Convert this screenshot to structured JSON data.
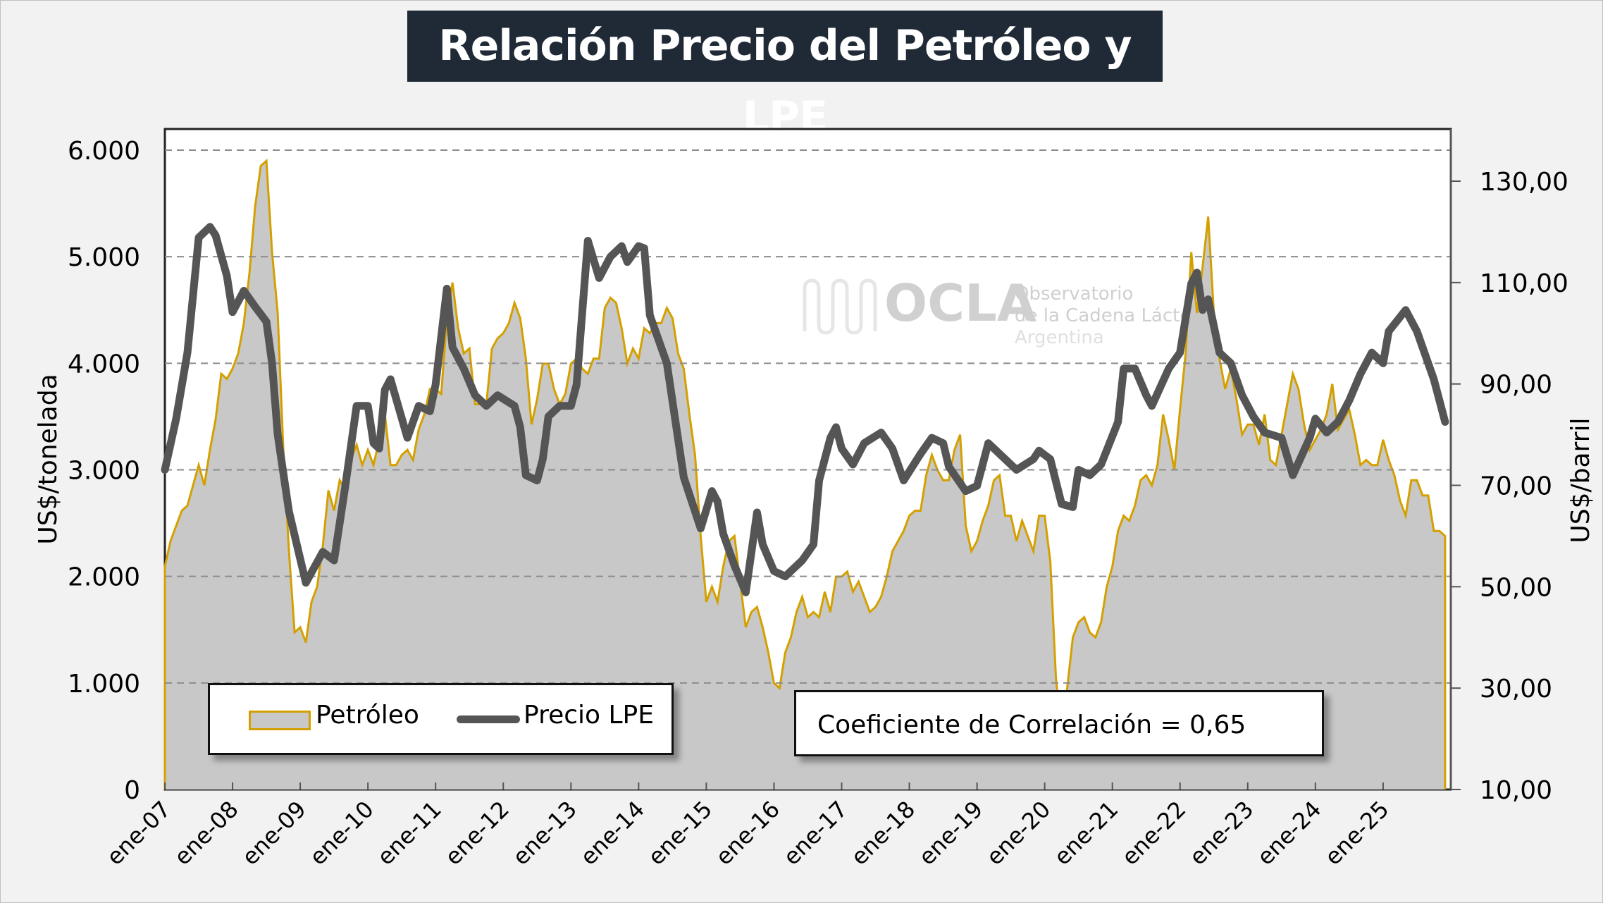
{
  "title": "Relación Precio del Petróleo y LPE",
  "watermark": {
    "logo": "OCLA",
    "line1": "Observatorio",
    "line2": "de la Cadena Láctea",
    "line3": "Argentina"
  },
  "legend": {
    "oil": "Petróleo",
    "lpe": "Precio LPE"
  },
  "correlation": "Coeficiente de Correlación = 0,65",
  "colors": {
    "oil_line": "#d4a000",
    "oil_fill": "#c8c8c8",
    "lpe_line": "#555555",
    "title_bg": "#1f2a36"
  },
  "chart_data": {
    "type": "line+area",
    "xlabel": "",
    "ylabel_left": "US$/tonelada",
    "ylabel_right": "US$/barril",
    "ylim_left": [
      0,
      6000
    ],
    "ylim_right": [
      10,
      130
    ],
    "yticks_left": [
      "0",
      "1.000",
      "2.000",
      "3.000",
      "4.000",
      "5.000",
      "6.000"
    ],
    "yticks_right": [
      "10,00",
      "30,00",
      "50,00",
      "70,00",
      "90,00",
      "110,00",
      "130,00"
    ],
    "xticks": [
      "ene-07",
      "ene-08",
      "ene-09",
      "ene-10",
      "ene-11",
      "ene-12",
      "ene-13",
      "ene-14",
      "ene-15",
      "ene-16",
      "ene-17",
      "ene-18",
      "ene-19",
      "ene-20",
      "ene-21",
      "ene-22",
      "ene-23",
      "ene-24",
      "ene-25"
    ],
    "grid": "horizontal dashed",
    "legend_placement": "bottom-left",
    "series": [
      {
        "name": "Petróleo",
        "axis": "right",
        "type": "area",
        "start": "2007-01",
        "frequency": "monthly",
        "values": [
          54,
          59,
          62,
          65,
          66,
          70,
          74,
          70,
          77,
          83,
          92,
          91,
          93,
          96,
          102,
          112,
          125,
          133,
          134,
          116,
          104,
          77,
          57,
          41,
          42,
          39,
          47,
          50,
          58,
          69,
          65,
          71,
          69,
          75,
          78,
          74,
          77,
          74,
          79,
          84,
          74,
          74,
          76,
          77,
          75,
          81,
          84,
          89,
          89,
          88,
          103,
          110,
          101,
          96,
          97,
          86,
          86,
          86,
          97,
          99,
          100,
          102,
          106,
          103,
          95,
          82,
          87,
          94,
          94,
          89,
          86,
          88,
          94,
          95,
          93,
          92,
          95,
          95,
          105,
          107,
          106,
          101,
          94,
          97,
          95,
          101,
          100,
          102,
          102,
          105,
          103,
          96,
          93,
          84,
          76,
          60,
          47,
          50,
          47,
          54,
          59,
          60,
          51,
          42,
          45,
          46,
          42,
          37,
          31,
          30,
          37,
          40,
          45,
          48,
          44,
          45,
          44,
          49,
          45,
          52,
          52,
          53,
          49,
          51,
          48,
          45,
          46,
          48,
          52,
          57,
          59,
          61,
          64,
          65,
          65,
          72,
          76,
          73,
          71,
          71,
          77,
          80,
          62,
          57,
          59,
          63,
          66,
          71,
          72,
          64,
          64,
          59,
          63,
          60,
          57,
          64,
          64,
          55,
          32,
          21,
          30,
          40,
          43,
          44,
          41,
          40,
          43,
          50,
          54,
          61,
          64,
          63,
          66,
          71,
          72,
          70,
          74,
          84,
          79,
          73,
          85,
          96,
          116,
          104,
          113,
          123,
          104,
          95,
          89,
          93,
          87,
          80,
          82,
          82,
          78,
          84,
          75,
          74,
          80,
          86,
          92,
          89,
          82,
          77,
          79,
          81,
          84,
          90,
          81,
          83,
          85,
          80,
          74,
          75,
          74,
          74,
          79,
          75,
          72,
          67,
          64,
          71,
          71,
          68,
          68,
          61,
          61,
          60
        ]
      },
      {
        "name": "Precio LPE",
        "axis": "left",
        "type": "line",
        "points": [
          [
            "2007-01",
            3000
          ],
          [
            "2007-03",
            3480
          ],
          [
            "2007-05",
            4100
          ],
          [
            "2007-07",
            5180
          ],
          [
            "2007-09",
            5280
          ],
          [
            "2007-10",
            5200
          ],
          [
            "2007-12",
            4820
          ],
          [
            "2008-01",
            4480
          ],
          [
            "2008-03",
            4680
          ],
          [
            "2008-05",
            4530
          ],
          [
            "2008-07",
            4390
          ],
          [
            "2008-08",
            4000
          ],
          [
            "2008-09",
            3330
          ],
          [
            "2008-11",
            2610
          ],
          [
            "2009-02",
            1940
          ],
          [
            "2009-05",
            2230
          ],
          [
            "2009-07",
            2150
          ],
          [
            "2009-09",
            2850
          ],
          [
            "2009-11",
            3600
          ],
          [
            "2010-01",
            3600
          ],
          [
            "2010-02",
            3250
          ],
          [
            "2010-03",
            3200
          ],
          [
            "2010-04",
            3750
          ],
          [
            "2010-05",
            3850
          ],
          [
            "2010-08",
            3300
          ],
          [
            "2010-10",
            3600
          ],
          [
            "2010-12",
            3550
          ],
          [
            "2011-01",
            3800
          ],
          [
            "2011-03",
            4700
          ],
          [
            "2011-04",
            4150
          ],
          [
            "2011-06",
            3950
          ],
          [
            "2011-08",
            3700
          ],
          [
            "2011-10",
            3600
          ],
          [
            "2011-12",
            3700
          ],
          [
            "2012-03",
            3600
          ],
          [
            "2012-04",
            3400
          ],
          [
            "2012-05",
            2950
          ],
          [
            "2012-07",
            2900
          ],
          [
            "2012-08",
            3100
          ],
          [
            "2012-09",
            3500
          ],
          [
            "2012-11",
            3600
          ],
          [
            "2013-01",
            3600
          ],
          [
            "2013-02",
            3800
          ],
          [
            "2013-04",
            5150
          ],
          [
            "2013-06",
            4800
          ],
          [
            "2013-08",
            5000
          ],
          [
            "2013-10",
            5100
          ],
          [
            "2013-11",
            4950
          ],
          [
            "2014-01",
            5100
          ],
          [
            "2014-02",
            5080
          ],
          [
            "2014-03",
            4450
          ],
          [
            "2014-06",
            4000
          ],
          [
            "2014-09",
            2930
          ],
          [
            "2014-12",
            2450
          ],
          [
            "2015-02",
            2800
          ],
          [
            "2015-03",
            2700
          ],
          [
            "2015-04",
            2400
          ],
          [
            "2015-06",
            2100
          ],
          [
            "2015-08",
            1850
          ],
          [
            "2015-10",
            2600
          ],
          [
            "2015-11",
            2300
          ],
          [
            "2016-01",
            2050
          ],
          [
            "2016-03",
            2000
          ],
          [
            "2016-06",
            2150
          ],
          [
            "2016-08",
            2300
          ],
          [
            "2016-09",
            2900
          ],
          [
            "2016-11",
            3300
          ],
          [
            "2016-12",
            3400
          ],
          [
            "2017-01",
            3200
          ],
          [
            "2017-03",
            3050
          ],
          [
            "2017-05",
            3250
          ],
          [
            "2017-08",
            3350
          ],
          [
            "2017-10",
            3200
          ],
          [
            "2017-12",
            2900
          ],
          [
            "2018-03",
            3150
          ],
          [
            "2018-05",
            3300
          ],
          [
            "2018-07",
            3250
          ],
          [
            "2018-08",
            3030
          ],
          [
            "2018-11",
            2800
          ],
          [
            "2019-01",
            2850
          ],
          [
            "2019-03",
            3250
          ],
          [
            "2019-06",
            3100
          ],
          [
            "2019-08",
            3000
          ],
          [
            "2019-11",
            3100
          ],
          [
            "2019-12",
            3180
          ],
          [
            "2020-02",
            3100
          ],
          [
            "2020-04",
            2680
          ],
          [
            "2020-06",
            2650
          ],
          [
            "2020-07",
            3000
          ],
          [
            "2020-09",
            2950
          ],
          [
            "2020-11",
            3050
          ],
          [
            "2021-02",
            3450
          ],
          [
            "2021-03",
            3950
          ],
          [
            "2021-05",
            3950
          ],
          [
            "2021-07",
            3700
          ],
          [
            "2021-08",
            3600
          ],
          [
            "2021-11",
            3950
          ],
          [
            "2022-01",
            4100
          ],
          [
            "2022-03",
            4750
          ],
          [
            "2022-04",
            4850
          ],
          [
            "2022-05",
            4500
          ],
          [
            "2022-06",
            4600
          ],
          [
            "2022-08",
            4100
          ],
          [
            "2022-10",
            4000
          ],
          [
            "2022-12",
            3700
          ],
          [
            "2023-02",
            3500
          ],
          [
            "2023-04",
            3350
          ],
          [
            "2023-07",
            3300
          ],
          [
            "2023-09",
            2950
          ],
          [
            "2023-12",
            3300
          ],
          [
            "2024-01",
            3480
          ],
          [
            "2024-03",
            3350
          ],
          [
            "2024-05",
            3450
          ],
          [
            "2024-07",
            3650
          ],
          [
            "2024-09",
            3900
          ],
          [
            "2024-11",
            4100
          ],
          [
            "2025-01",
            4000
          ],
          [
            "2025-02",
            4300
          ],
          [
            "2025-05",
            4500
          ],
          [
            "2025-07",
            4300
          ],
          [
            "2025-10",
            3850
          ],
          [
            "2025-12",
            3450
          ]
        ]
      }
    ]
  }
}
